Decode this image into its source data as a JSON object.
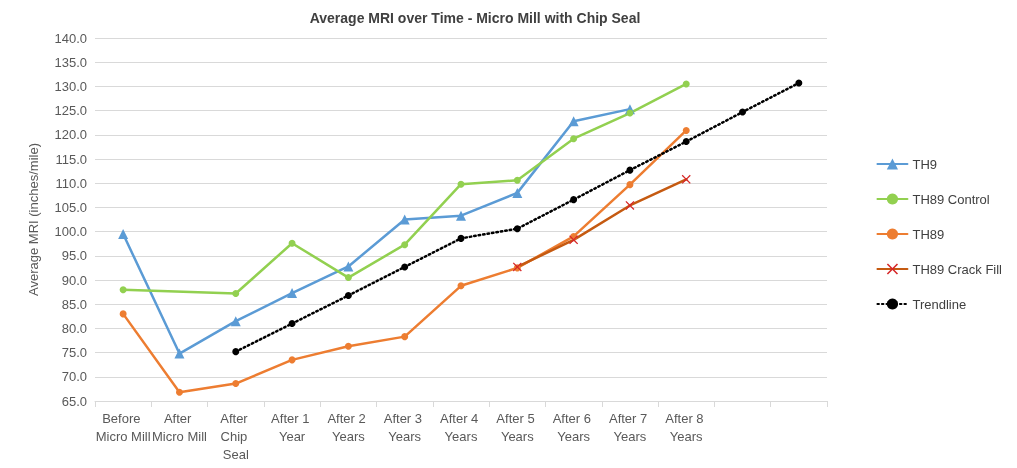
{
  "chart_data": {
    "type": "line",
    "title": "Average MRI over Time - Micro Mill with Chip Seal",
    "ylabel": "Average MRI (inches/mile)",
    "categories": [
      "Before Micro Mill",
      "After Micro Mill",
      "After Chip Seal",
      "After 1 Year",
      "After 2 Years",
      "After 3 Years",
      "After 4 Years",
      "After 5 Years",
      "After 6 Years",
      "After 7 Years",
      "After 8 Years",
      null,
      null
    ],
    "series": [
      {
        "name": "TH9",
        "color": "#5b9bd5",
        "marker": "triangle",
        "values": [
          99.5,
          74.8,
          81.5,
          87.3,
          92.8,
          102.5,
          103.3,
          108.0,
          122.8,
          125.3,
          null,
          null,
          null
        ]
      },
      {
        "name": "TH89 Control",
        "color": "#92d050",
        "marker": "circle",
        "values": [
          88.0,
          null,
          87.2,
          97.6,
          90.5,
          97.3,
          109.8,
          110.6,
          119.2,
          124.5,
          130.5,
          null,
          null
        ]
      },
      {
        "name": "TH89",
        "color": "#ed7d31",
        "marker": "circle",
        "values": [
          83.0,
          66.8,
          68.6,
          73.5,
          76.3,
          78.3,
          88.8,
          92.5,
          99.0,
          109.7,
          120.9,
          null,
          null
        ]
      },
      {
        "name": "TH89 Crack Fill",
        "color": "#c55a11",
        "marker": "cross",
        "values": [
          null,
          null,
          null,
          null,
          null,
          null,
          null,
          92.7,
          98.3,
          105.4,
          110.8,
          null,
          null
        ]
      },
      {
        "name": "Trendline",
        "color": "#000000",
        "marker": "circle",
        "line_style": "dotted",
        "values": [
          null,
          null,
          75.2,
          81.0,
          86.8,
          92.7,
          98.6,
          100.6,
          106.6,
          112.7,
          118.6,
          124.7,
          130.7
        ]
      }
    ],
    "ylim": [
      65,
      140
    ],
    "yticks": [
      {
        "value": 65,
        "label": "65.0"
      },
      {
        "value": 70,
        "label": "70.0"
      },
      {
        "value": 75,
        "label": "75.0"
      },
      {
        "value": 80,
        "label": "80.0"
      },
      {
        "value": 85,
        "label": "85.0"
      },
      {
        "value": 90,
        "label": "90.0"
      },
      {
        "value": 95,
        "label": "95.0"
      },
      {
        "value": 100,
        "label": "100.0"
      },
      {
        "value": 105,
        "label": "105.0"
      },
      {
        "value": 110,
        "label": "110.0"
      },
      {
        "value": 115,
        "label": "115.0"
      },
      {
        "value": 120,
        "label": "120.0"
      },
      {
        "value": 125,
        "label": "125.0"
      },
      {
        "value": 130,
        "label": "130.0"
      },
      {
        "value": 135,
        "label": "135.0"
      },
      {
        "value": 140,
        "label": "140.0"
      }
    ],
    "grid": "y",
    "legend": "right"
  }
}
